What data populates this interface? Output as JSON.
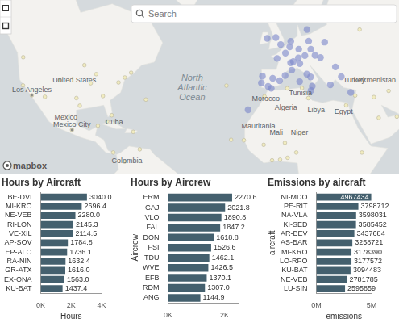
{
  "map": {
    "search_placeholder": "Search",
    "attribution": "mapbox",
    "labels": [
      {
        "text": "United States",
        "lon": -98,
        "lat": 39,
        "kind": "country"
      },
      {
        "text": "Los Angeles",
        "lon": -118.2,
        "lat": 34,
        "kind": "city"
      },
      {
        "text": "Mexico",
        "lon": -102,
        "lat": 24,
        "kind": "country"
      },
      {
        "text": "Mexico City",
        "lon": -99.1,
        "lat": 19.4,
        "kind": "city"
      },
      {
        "text": "Cuba",
        "lon": -79,
        "lat": 21.8,
        "kind": "country"
      },
      {
        "text": "Colombia",
        "lon": -73,
        "lat": 4,
        "kind": "country"
      },
      {
        "text": "North Atlantic Ocean",
        "lon": -42,
        "lat": 36,
        "kind": "ocean"
      },
      {
        "text": "Morocco",
        "lon": -7,
        "lat": 31.8,
        "kind": "country"
      },
      {
        "text": "Tunisia",
        "lon": 9.5,
        "lat": 34,
        "kind": "country"
      },
      {
        "text": "Algeria",
        "lon": 2.6,
        "lat": 28,
        "kind": "country"
      },
      {
        "text": "Libya",
        "lon": 17,
        "lat": 27,
        "kind": "country"
      },
      {
        "text": "Egypt",
        "lon": 30,
        "lat": 26.5,
        "kind": "country"
      },
      {
        "text": "Mauritania",
        "lon": -10.5,
        "lat": 20,
        "kind": "country"
      },
      {
        "text": "Mali",
        "lon": -2,
        "lat": 17,
        "kind": "country"
      },
      {
        "text": "Niger",
        "lon": 9,
        "lat": 17,
        "kind": "country"
      },
      {
        "text": "Turkey",
        "lon": 35,
        "lat": 39,
        "kind": "country"
      },
      {
        "text": "Turkmenistan",
        "lon": 59,
        "lat": 39,
        "kind": "country"
      }
    ],
    "markers": [
      {
        "color": "#f1ecc0",
        "points": [
          [
            -118.2,
            34
          ],
          [
            -122.4,
            37.8
          ],
          [
            -112,
            33.4
          ],
          [
            -104.9,
            39.7
          ],
          [
            -97,
            32.9
          ],
          [
            -95.4,
            29.8
          ],
          [
            -87.6,
            41.9
          ],
          [
            -84.4,
            33.7
          ],
          [
            -80.2,
            25.8
          ],
          [
            -74,
            40.7
          ],
          [
            -71,
            42.4
          ],
          [
            -77,
            38.9
          ],
          [
            -90.2,
            38.6
          ],
          [
            -93.2,
            45
          ],
          [
            -122.3,
            47.6
          ],
          [
            -99.1,
            19.4
          ],
          [
            -86.8,
            21.2
          ],
          [
            -79.5,
            9
          ],
          [
            -74.1,
            4.7
          ],
          [
            -66.9,
            10.5
          ],
          [
            -82.4,
            23.1
          ],
          [
            -70,
            18.5
          ],
          [
            -64,
            32.3
          ],
          [
            -25.7,
            37.7
          ],
          [
            -23.5,
            14.9
          ],
          [
            -17.4,
            14.7
          ],
          [
            -7.6,
            33.6
          ],
          [
            3.2,
            36.7
          ],
          [
            10.2,
            36.8
          ],
          [
            13.2,
            32.9
          ],
          [
            31.2,
            30
          ],
          [
            -8,
            12.6
          ],
          [
            2.1,
            13.5
          ],
          [
            7.5,
            9
          ],
          [
            3.4,
            6.5
          ],
          [
            -0.2,
            5.6
          ],
          [
            -4,
            5.3
          ],
          [
            38.7,
            9
          ],
          [
            46.7,
            24.7
          ],
          [
            55.3,
            25.2
          ],
          [
            44.4,
            33.3
          ],
          [
            51.4,
            35.7
          ],
          [
            35.5,
            33.9
          ],
          [
            37.6,
            55.7
          ],
          [
            30.3,
            59.9
          ]
        ]
      },
      {
        "color": "#7985c9",
        "points": [
          [
            -3.7,
            40.4
          ],
          [
            2.2,
            41.4
          ],
          [
            -0.4,
            39.5
          ],
          [
            -9.1,
            38.7
          ],
          [
            2.35,
            48.9
          ],
          [
            4.8,
            45.8
          ],
          [
            5.4,
            43.3
          ],
          [
            -1.6,
            47.2
          ],
          [
            0.1,
            51.5
          ],
          [
            -2.2,
            53.5
          ],
          [
            -6.3,
            53.3
          ],
          [
            4.9,
            52.4
          ],
          [
            4.4,
            50.8
          ],
          [
            8.7,
            50.1
          ],
          [
            13.4,
            52.5
          ],
          [
            11.6,
            48.1
          ],
          [
            9.2,
            45.5
          ],
          [
            12.5,
            41.9
          ],
          [
            14.3,
            40.9
          ],
          [
            16.4,
            48.2
          ],
          [
            19,
            47.5
          ],
          [
            21,
            52.2
          ],
          [
            14.4,
            50.1
          ],
          [
            12.6,
            55.7
          ],
          [
            18.1,
            59.3
          ],
          [
            10.7,
            59.9
          ],
          [
            24.9,
            60.2
          ],
          [
            23.7,
            38
          ],
          [
            28.9,
            41
          ],
          [
            26.1,
            44.4
          ],
          [
            -8.6,
            41.2
          ],
          [
            -5.9,
            37.4
          ],
          [
            15.1,
            37.5
          ],
          [
            9.1,
            39.2
          ],
          [
            -15.4,
            28.1
          ],
          [
            14.5,
            35.9
          ],
          [
            33.4,
            35.1
          ],
          [
            6.1,
            46.2
          ],
          [
            8.5,
            47.4
          ],
          [
            -4.4,
            36.7
          ]
        ]
      }
    ]
  },
  "chart_data": [
    {
      "type": "bar",
      "orientation": "horizontal",
      "title": "Hours by Aircraft",
      "x_label": "Hours",
      "categories": [
        "BE-DVI",
        "MI-KRO",
        "NE-VEB",
        "RI-LON",
        "VE-XIL",
        "AP-SOV",
        "EP-ALO",
        "RA-NIN",
        "GR-ATX",
        "EX-ONA",
        "KU-BAT"
      ],
      "values": [
        3040.0,
        2696.4,
        2280.0,
        2145.3,
        2114.5,
        1784.8,
        1736.1,
        1632.4,
        1616.0,
        1563.0,
        1437.4
      ],
      "value_labels": [
        "3040.0",
        "2696.4",
        "2280.0",
        "2145.3",
        "2114.5",
        "1784.8",
        "1736.1",
        "1632.4",
        "1616.0",
        "1563.0",
        "1437.4"
      ],
      "data_labels": true,
      "color": "#44606e",
      "xlim": [
        0,
        4000
      ],
      "xticks": [
        {
          "value": 0,
          "label": "0K"
        },
        {
          "value": 2000,
          "label": "2K"
        },
        {
          "value": 4000,
          "label": "4K"
        }
      ],
      "grid": false
    },
    {
      "type": "bar",
      "orientation": "horizontal",
      "title": "Hours by Aircrew",
      "y_label": "Aircrew",
      "categories": [
        "ERM",
        "GAJ",
        "VLO",
        "FAL",
        "DON",
        "FSI",
        "TDU",
        "WVE",
        "EFB",
        "RDM",
        "ANG"
      ],
      "values": [
        2270.6,
        2021.8,
        1890.8,
        1847.2,
        1618.8,
        1526.6,
        1462.1,
        1426.5,
        1370.1,
        1307.0,
        1144.9
      ],
      "value_labels": [
        "2270.6",
        "2021.8",
        "1890.8",
        "1847.2",
        "1618.8",
        "1526.6",
        "1462.1",
        "1426.5",
        "1370.1",
        "1307.0",
        "1144.9"
      ],
      "data_labels": true,
      "color": "#44606e",
      "xlim": [
        0,
        2500
      ],
      "xticks": [
        {
          "value": 0,
          "label": "0K"
        },
        {
          "value": 2000,
          "label": "2K"
        }
      ],
      "grid": false
    },
    {
      "type": "bar",
      "orientation": "horizontal",
      "title": "Emissions by aircraft",
      "y_label": "aircraft",
      "x_label": "emissions",
      "categories": [
        "NI-MDO",
        "PE-RIT",
        "NA-VLA",
        "KI-SED",
        "AR-BEV",
        "AS-BAR",
        "MI-KRO",
        "LO-RPO",
        "KU-BAT",
        "NE-VEB",
        "LU-SIN"
      ],
      "values": [
        4967434,
        3798712,
        3598031,
        3585452,
        3437684,
        3258721,
        3178390,
        3177572,
        3094483,
        2781785,
        2595859
      ],
      "data_labels": true,
      "color": "#44606e",
      "xlim": [
        0,
        5000000
      ],
      "xticks": [
        {
          "value": 0,
          "label": "0M"
        },
        {
          "value": 5000000,
          "label": "5M"
        }
      ],
      "grid": false
    }
  ]
}
